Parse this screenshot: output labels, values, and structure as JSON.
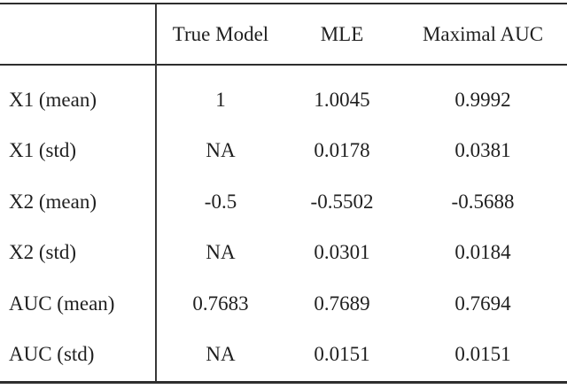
{
  "table": {
    "columns": [
      "",
      "True Model",
      "MLE",
      "Maximal AUC"
    ],
    "rows": [
      {
        "label": "X1 (mean)",
        "values": [
          "1",
          "1.0045",
          "0.9992"
        ]
      },
      {
        "label": "X1 (std)",
        "values": [
          "NA",
          "0.0178",
          "0.0381"
        ]
      },
      {
        "label": "X2 (mean)",
        "values": [
          "-0.5",
          "-0.5502",
          "-0.5688"
        ]
      },
      {
        "label": "X2 (std)",
        "values": [
          "NA",
          "0.0301",
          "0.0184"
        ]
      },
      {
        "label": "AUC (mean)",
        "values": [
          "0.7683",
          "0.7689",
          "0.7694"
        ]
      },
      {
        "label": "AUC (std)",
        "values": [
          "NA",
          "0.0151",
          "0.0151"
        ]
      }
    ]
  },
  "colors": {
    "background": "#ffffff",
    "text": "#1f1f1f",
    "rule": "#2e2e2e"
  }
}
